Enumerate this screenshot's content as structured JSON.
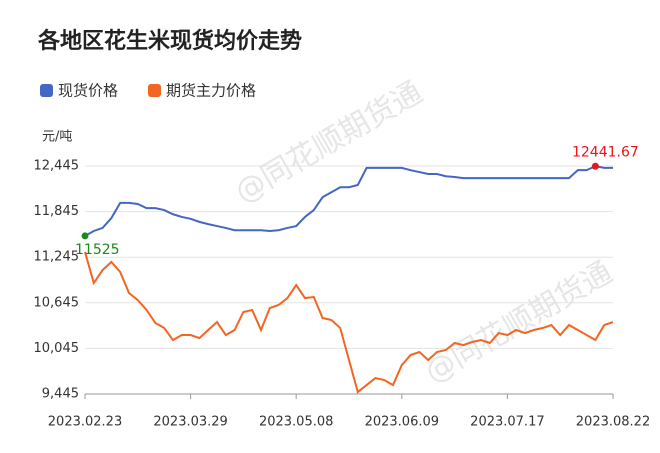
{
  "chart_data": {
    "type": "line",
    "title": "各地区花生米现货均价走势",
    "y_unit": "元/吨",
    "watermark": "@同花顺期货通",
    "categories": [
      "2023.02.23",
      null,
      null,
      null,
      null,
      null,
      null,
      null,
      null,
      null,
      null,
      null,
      "2023.03.29",
      null,
      null,
      null,
      null,
      null,
      null,
      null,
      null,
      null,
      null,
      null,
      "2023.05.08",
      null,
      null,
      null,
      null,
      null,
      null,
      null,
      null,
      null,
      null,
      null,
      "2023.06.09",
      null,
      null,
      null,
      null,
      null,
      null,
      null,
      null,
      null,
      null,
      null,
      "2023.07.17",
      null,
      null,
      null,
      null,
      null,
      null,
      null,
      null,
      null,
      null,
      null,
      "2023.08.22"
    ],
    "series": [
      {
        "name": "现货价格",
        "color": "#4466c4",
        "values": [
          11525,
          11590,
          11630,
          11760,
          11960,
          11960,
          11945,
          11890,
          11890,
          11865,
          11810,
          11775,
          11750,
          11710,
          11680,
          11655,
          11630,
          11600,
          11600,
          11600,
          11600,
          11590,
          11600,
          11630,
          11655,
          11775,
          11865,
          12035,
          12100,
          12165,
          12165,
          12195,
          12420,
          12420,
          12420,
          12420,
          12420,
          12390,
          12365,
          12340,
          12340,
          12310,
          12300,
          12285,
          12285,
          12285,
          12285,
          12285,
          12285,
          12285,
          12285,
          12285,
          12285,
          12285,
          12285,
          12285,
          12390,
          12390,
          12441.67,
          12420,
          12420
        ]
      },
      {
        "name": "期货主力价格",
        "color": "#f26522",
        "values": [
          11313,
          10905,
          11076,
          11182,
          11050,
          10774,
          10681,
          10550,
          10379,
          10313,
          10155,
          10221,
          10221,
          10181,
          10287,
          10392,
          10221,
          10287,
          10524,
          10550,
          10287,
          10576,
          10616,
          10708,
          10879,
          10708,
          10721,
          10445,
          10418,
          10313,
          9892,
          9471,
          9563,
          9655,
          9629,
          9563,
          9826,
          9958,
          9997,
          9892,
          9997,
          10024,
          10116,
          10089,
          10129,
          10155,
          10116,
          10247,
          10221,
          10287,
          10247,
          10287,
          10313,
          10352,
          10221,
          10352,
          10287,
          10221,
          10155,
          10352,
          10392
        ]
      }
    ],
    "ylim": [
      9445,
      12445
    ],
    "yticks": [
      {
        "value": 9445,
        "label": "9,445"
      },
      {
        "value": 10045,
        "label": "10,045"
      },
      {
        "value": 10645,
        "label": "10,645"
      },
      {
        "value": 11245,
        "label": "11,245"
      },
      {
        "value": 11845,
        "label": "11,845"
      },
      {
        "value": 12445,
        "label": "12,445"
      }
    ],
    "grid": true
  }
}
